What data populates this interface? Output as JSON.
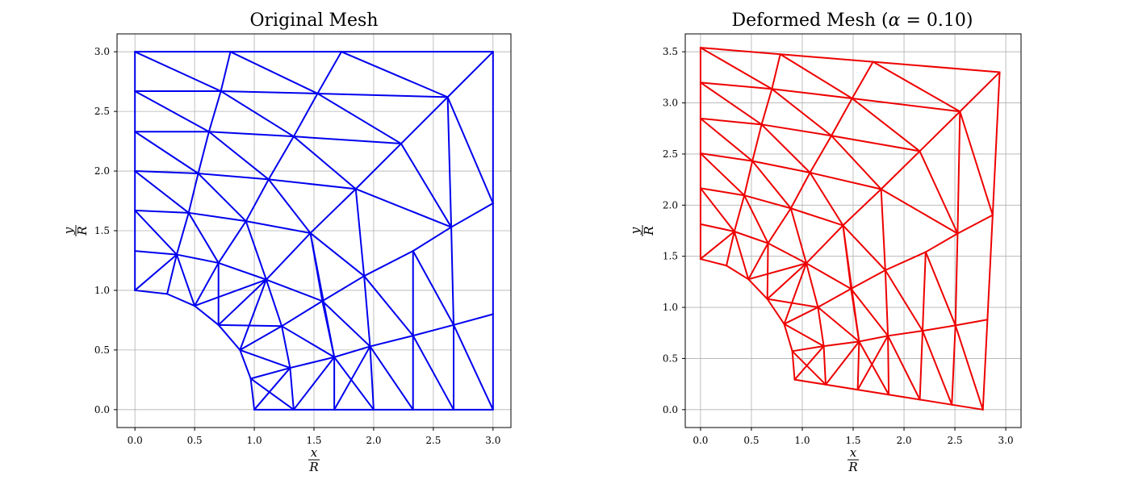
{
  "chart_data": [
    {
      "type": "mesh",
      "title": "Original Mesh",
      "xlabel_num": "x",
      "xlabel_den": "R",
      "ylabel_num": "y",
      "ylabel_den": "R",
      "xlim": [
        -0.15,
        3.15
      ],
      "ylim": [
        -0.15,
        3.15
      ],
      "xticks": [
        "0.0",
        "0.5",
        "1.0",
        "1.5",
        "2.0",
        "2.5",
        "3.0"
      ],
      "yticks": [
        "0.0",
        "0.5",
        "1.0",
        "1.5",
        "2.0",
        "2.5",
        "3.0"
      ],
      "grid": true,
      "color": "#0000ee",
      "nodes": [
        [
          0,
          3
        ],
        [
          0.8,
          3
        ],
        [
          1.73,
          3
        ],
        [
          3,
          3
        ],
        [
          0,
          2.67
        ],
        [
          0.72,
          2.67
        ],
        [
          1.53,
          2.65
        ],
        [
          2.62,
          2.62
        ],
        [
          0,
          2.33
        ],
        [
          0.62,
          2.33
        ],
        [
          1.33,
          2.29
        ],
        [
          2.23,
          2.23
        ],
        [
          0,
          2
        ],
        [
          0.53,
          1.98
        ],
        [
          1.12,
          1.93
        ],
        [
          1.85,
          1.85
        ],
        [
          3,
          1.73
        ],
        [
          0,
          1.67
        ],
        [
          0.45,
          1.65
        ],
        [
          0.93,
          1.58
        ],
        [
          1.47,
          1.48
        ],
        [
          2.65,
          1.53
        ],
        [
          0,
          1.33
        ],
        [
          0.35,
          1.3
        ],
        [
          0.7,
          1.23
        ],
        [
          1.1,
          1.09
        ],
        [
          1.92,
          1.12
        ],
        [
          0,
          1
        ],
        [
          0.27,
          0.97
        ],
        [
          0.5,
          0.87
        ],
        [
          0.7,
          0.71
        ],
        [
          1.57,
          0.91
        ],
        [
          2.33,
          1.33
        ],
        [
          3,
          0.8
        ],
        [
          2.67,
          0.71
        ],
        [
          0.88,
          0.5
        ],
        [
          1.23,
          0.7
        ],
        [
          1.97,
          0.53
        ],
        [
          2.33,
          0.62
        ],
        [
          0.97,
          0.26
        ],
        [
          1.3,
          0.35
        ],
        [
          1.67,
          0.44
        ],
        [
          1,
          0
        ],
        [
          1.33,
          0
        ],
        [
          1.67,
          0
        ],
        [
          2,
          0
        ],
        [
          2.33,
          0
        ],
        [
          2.67,
          0
        ],
        [
          3,
          0
        ]
      ],
      "edges": [
        [
          0,
          1
        ],
        [
          1,
          2
        ],
        [
          2,
          3
        ],
        [
          0,
          4
        ],
        [
          4,
          8
        ],
        [
          8,
          12
        ],
        [
          12,
          17
        ],
        [
          17,
          22
        ],
        [
          22,
          27
        ],
        [
          3,
          16
        ],
        [
          16,
          33
        ],
        [
          33,
          48
        ],
        [
          42,
          43
        ],
        [
          43,
          44
        ],
        [
          44,
          45
        ],
        [
          45,
          46
        ],
        [
          46,
          47
        ],
        [
          47,
          48
        ],
        [
          27,
          28
        ],
        [
          28,
          29
        ],
        [
          29,
          30
        ],
        [
          30,
          35
        ],
        [
          35,
          39
        ],
        [
          39,
          42
        ],
        [
          4,
          5
        ],
        [
          5,
          6
        ],
        [
          6,
          7
        ],
        [
          7,
          3
        ],
        [
          1,
          5
        ],
        [
          0,
          5
        ],
        [
          1,
          6
        ],
        [
          2,
          6
        ],
        [
          2,
          7
        ],
        [
          8,
          9
        ],
        [
          9,
          10
        ],
        [
          10,
          11
        ],
        [
          11,
          7
        ],
        [
          4,
          9
        ],
        [
          5,
          9
        ],
        [
          5,
          10
        ],
        [
          6,
          10
        ],
        [
          6,
          11
        ],
        [
          12,
          13
        ],
        [
          13,
          14
        ],
        [
          14,
          15
        ],
        [
          15,
          11
        ],
        [
          8,
          13
        ],
        [
          9,
          13
        ],
        [
          9,
          14
        ],
        [
          10,
          14
        ],
        [
          10,
          15
        ],
        [
          17,
          18
        ],
        [
          18,
          19
        ],
        [
          19,
          20
        ],
        [
          20,
          15
        ],
        [
          12,
          18
        ],
        [
          13,
          18
        ],
        [
          13,
          19
        ],
        [
          14,
          19
        ],
        [
          14,
          20
        ],
        [
          22,
          23
        ],
        [
          23,
          24
        ],
        [
          24,
          25
        ],
        [
          25,
          20
        ],
        [
          17,
          23
        ],
        [
          18,
          23
        ],
        [
          18,
          24
        ],
        [
          19,
          24
        ],
        [
          19,
          25
        ],
        [
          27,
          23
        ],
        [
          28,
          23
        ],
        [
          23,
          29
        ],
        [
          24,
          29
        ],
        [
          24,
          30
        ],
        [
          25,
          30
        ],
        [
          20,
          26
        ],
        [
          26,
          32
        ],
        [
          32,
          21
        ],
        [
          21,
          16
        ],
        [
          15,
          26
        ],
        [
          15,
          21
        ],
        [
          11,
          21
        ],
        [
          7,
          21
        ],
        [
          7,
          16
        ],
        [
          20,
          31
        ],
        [
          25,
          31
        ],
        [
          31,
          26
        ],
        [
          26,
          37
        ],
        [
          37,
          38
        ],
        [
          38,
          32
        ],
        [
          32,
          34
        ],
        [
          34,
          21
        ],
        [
          34,
          33
        ],
        [
          34,
          48
        ],
        [
          38,
          34
        ],
        [
          38,
          46
        ],
        [
          38,
          47
        ],
        [
          37,
          45
        ],
        [
          37,
          46
        ],
        [
          31,
          37
        ],
        [
          31,
          41
        ],
        [
          41,
          37
        ],
        [
          30,
          36
        ],
        [
          36,
          25
        ],
        [
          36,
          31
        ],
        [
          36,
          41
        ],
        [
          35,
          36
        ],
        [
          35,
          40
        ],
        [
          36,
          40
        ],
        [
          40,
          41
        ],
        [
          39,
          40
        ],
        [
          40,
          42
        ],
        [
          40,
          43
        ],
        [
          41,
          43
        ],
        [
          41,
          44
        ],
        [
          41,
          45
        ],
        [
          37,
          44
        ],
        [
          39,
          43
        ],
        [
          35,
          25
        ],
        [
          20,
          41
        ],
        [
          26,
          38
        ],
        [
          47,
          34
        ],
        [
          29,
          25
        ]
      ]
    },
    {
      "type": "mesh",
      "title": "Deformed Mesh (α = 0.10)",
      "title_prefix": "Deformed Mesh (",
      "title_alpha": "α",
      "title_suffix": " = 0.10)",
      "xlabel_num": "x",
      "xlabel_den": "R",
      "ylabel_num": "y",
      "ylabel_den": "R",
      "xlim": [
        -0.15,
        3.15
      ],
      "ylim": [
        -0.175,
        3.675
      ],
      "xticks": [
        "0.0",
        "0.5",
        "1.0",
        "1.5",
        "2.0",
        "2.5",
        "3.0"
      ],
      "yticks": [
        "0.0",
        "0.5",
        "1.0",
        "1.5",
        "2.0",
        "2.5",
        "3.0",
        "3.5"
      ],
      "grid": true,
      "color": "#ee0000"
    }
  ]
}
